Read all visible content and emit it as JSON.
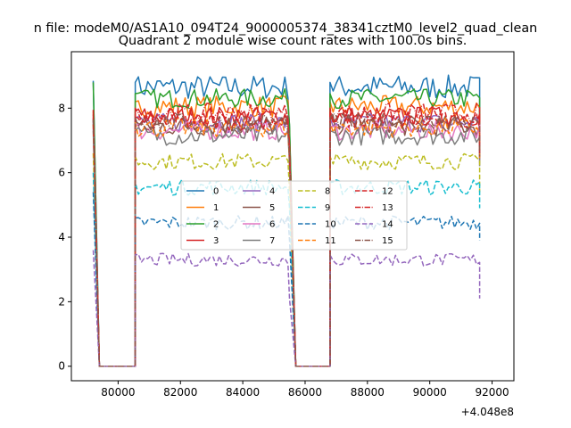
{
  "chart_data": {
    "type": "line",
    "suptitle": "n file: modeM0/AS1A10_094T24_9000005374_38341cztM0_level2_quad_clean",
    "title": "Quadrant 2 module wise count rates with 100.0s bins.",
    "xlabel": "",
    "ylabel": "",
    "x_offset_label": "+4.048e8",
    "xlim": [
      78500,
      92700
    ],
    "ylim": [
      -0.45,
      9.75
    ],
    "x_ticks": [
      80000,
      82000,
      84000,
      86000,
      88000,
      90000,
      92000
    ],
    "y_ticks": [
      0,
      2,
      4,
      6,
      8
    ],
    "grid": false,
    "legend": {
      "placement": "center",
      "columns": 4
    },
    "segments": [
      {
        "start": 79200,
        "end": 79400
      },
      {
        "start": 79400,
        "end": 80550
      },
      {
        "start": 80550,
        "end": 85700
      },
      {
        "start": 85700,
        "end": 86800
      },
      {
        "start": 86800,
        "end": 91700
      }
    ],
    "series": [
      {
        "name": "0",
        "color": "#1f77b4",
        "dash": "solid",
        "start": 8.85,
        "level": 8.65,
        "noise": 0.38,
        "end": 7.4
      },
      {
        "name": "1",
        "color": "#ff7f0e",
        "dash": "solid",
        "start": 7.9,
        "level": 8.05,
        "noise": 0.34,
        "end": 7.3
      },
      {
        "name": "2",
        "color": "#2ca02c",
        "dash": "solid",
        "start": 8.8,
        "level": 8.3,
        "noise": 0.3,
        "end": 7.5
      },
      {
        "name": "3",
        "color": "#d62728",
        "dash": "solid",
        "start": 7.8,
        "level": 7.75,
        "noise": 0.3,
        "end": 6.8
      },
      {
        "name": "4",
        "color": "#9467bd",
        "dash": "solid",
        "start": 7.6,
        "level": 7.55,
        "noise": 0.3,
        "end": 6.6
      },
      {
        "name": "5",
        "color": "#8c564b",
        "dash": "solid",
        "start": 7.5,
        "level": 7.45,
        "noise": 0.32,
        "end": 6.4
      },
      {
        "name": "6",
        "color": "#e377c2",
        "dash": "solid",
        "start": 7.4,
        "level": 7.3,
        "noise": 0.3,
        "end": 6.3
      },
      {
        "name": "7",
        "color": "#7f7f7f",
        "dash": "solid",
        "start": 7.3,
        "level": 7.15,
        "noise": 0.3,
        "end": 6.2
      },
      {
        "name": "8",
        "color": "#bcbd22",
        "dash": "dashed",
        "start": 6.6,
        "level": 6.35,
        "noise": 0.25,
        "end": 5.4
      },
      {
        "name": "9",
        "color": "#17becf",
        "dash": "dashed",
        "start": 6.0,
        "level": 5.55,
        "noise": 0.25,
        "end": 4.9
      },
      {
        "name": "10",
        "color": "#1f77b4",
        "dash": "dashed",
        "start": 5.4,
        "level": 4.45,
        "noise": 0.22,
        "end": 3.9
      },
      {
        "name": "11",
        "color": "#ff7f0e",
        "dash": "dashed",
        "start": 7.5,
        "level": 7.4,
        "noise": 0.3,
        "end": 6.4
      },
      {
        "name": "12",
        "color": "#d62728",
        "dash": "dashed",
        "start": 7.7,
        "level": 7.6,
        "noise": 0.28,
        "end": 6.6
      },
      {
        "name": "13",
        "color": "#d62728",
        "dash": "dashdot",
        "start": 7.95,
        "level": 7.85,
        "noise": 0.3,
        "end": 6.9
      },
      {
        "name": "14",
        "color": "#9467bd",
        "dash": "dashed",
        "start": 3.6,
        "level": 3.3,
        "noise": 0.2,
        "end": 2.1
      },
      {
        "name": "15",
        "color": "#8c564b",
        "dash": "dashdot",
        "start": 7.65,
        "level": 7.55,
        "noise": 0.3,
        "end": 6.5
      }
    ]
  }
}
